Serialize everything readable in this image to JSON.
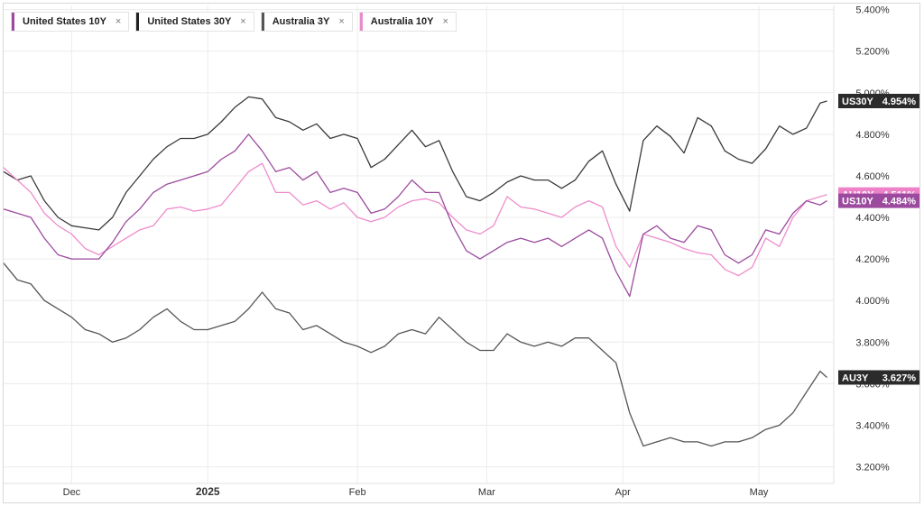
{
  "legend": [
    {
      "key": "US10Y",
      "label": "United States 10Y",
      "color": "#9b4a9e",
      "close": "×"
    },
    {
      "key": "US30Y",
      "label": "United States 30Y",
      "color": "#222222",
      "close": "×"
    },
    {
      "key": "AU3Y",
      "label": "Australia 3Y",
      "color": "#555555",
      "close": "×"
    },
    {
      "key": "AU10Y",
      "label": "Australia 10Y",
      "color": "#e98ccb",
      "close": "×"
    }
  ],
  "last_value_tags": [
    {
      "series": "US30Y",
      "symbol": "US30Y",
      "value": "4.954%",
      "color": "#2b2b2b"
    },
    {
      "series": "AU10Y",
      "symbol": "AU10Y",
      "value": "4.511%",
      "color": "#ee82c8"
    },
    {
      "series": "US10Y",
      "symbol": "US10Y",
      "value": "4.484%",
      "color": "#9b4a9e"
    },
    {
      "series": "AU3Y",
      "symbol": "AU3Y",
      "value": "3.627%",
      "color": "#2b2b2b"
    }
  ],
  "chart_data": {
    "type": "line",
    "title": "",
    "xlabel": "",
    "ylabel": "",
    "ylim": [
      3.12,
      5.42
    ],
    "xlim": [
      0,
      122
    ],
    "y_ticks": [
      "3.200%",
      "3.400%",
      "3.600%",
      "3.800%",
      "4.000%",
      "4.200%",
      "4.400%",
      "4.600%",
      "4.800%",
      "5.000%",
      "5.200%",
      "5.400%"
    ],
    "y_tick_values": [
      3.2,
      3.4,
      3.6,
      3.8,
      4.0,
      4.2,
      4.4,
      4.6,
      4.8,
      5.0,
      5.2,
      5.4
    ],
    "x_ticks": [
      {
        "label": "Dec",
        "x": 10,
        "bold": false
      },
      {
        "label": "2025",
        "x": 30,
        "bold": true
      },
      {
        "label": "Feb",
        "x": 52,
        "bold": false
      },
      {
        "label": "Mar",
        "x": 71,
        "bold": false
      },
      {
        "label": "Apr",
        "x": 91,
        "bold": false
      },
      {
        "label": "May",
        "x": 111,
        "bold": false
      }
    ],
    "grid": true,
    "series": [
      {
        "name": "US30Y",
        "color": "#3a3a3a",
        "points": [
          [
            0,
            4.62
          ],
          [
            2,
            4.58
          ],
          [
            4,
            4.6
          ],
          [
            6,
            4.48
          ],
          [
            8,
            4.4
          ],
          [
            10,
            4.36
          ],
          [
            12,
            4.35
          ],
          [
            14,
            4.34
          ],
          [
            16,
            4.4
          ],
          [
            18,
            4.52
          ],
          [
            20,
            4.6
          ],
          [
            22,
            4.68
          ],
          [
            24,
            4.74
          ],
          [
            26,
            4.78
          ],
          [
            28,
            4.78
          ],
          [
            30,
            4.8
          ],
          [
            32,
            4.86
          ],
          [
            34,
            4.93
          ],
          [
            36,
            4.98
          ],
          [
            38,
            4.97
          ],
          [
            40,
            4.88
          ],
          [
            42,
            4.86
          ],
          [
            44,
            4.82
          ],
          [
            46,
            4.85
          ],
          [
            48,
            4.78
          ],
          [
            50,
            4.8
          ],
          [
            52,
            4.78
          ],
          [
            54,
            4.64
          ],
          [
            56,
            4.68
          ],
          [
            58,
            4.75
          ],
          [
            60,
            4.82
          ],
          [
            62,
            4.74
          ],
          [
            64,
            4.77
          ],
          [
            66,
            4.62
          ],
          [
            68,
            4.5
          ],
          [
            70,
            4.48
          ],
          [
            72,
            4.52
          ],
          [
            74,
            4.57
          ],
          [
            76,
            4.6
          ],
          [
            78,
            4.58
          ],
          [
            80,
            4.58
          ],
          [
            82,
            4.54
          ],
          [
            84,
            4.58
          ],
          [
            86,
            4.67
          ],
          [
            88,
            4.72
          ],
          [
            90,
            4.56
          ],
          [
            92,
            4.43
          ],
          [
            94,
            4.77
          ],
          [
            96,
            4.84
          ],
          [
            98,
            4.79
          ],
          [
            100,
            4.71
          ],
          [
            102,
            4.88
          ],
          [
            104,
            4.84
          ],
          [
            106,
            4.72
          ],
          [
            108,
            4.68
          ],
          [
            110,
            4.66
          ],
          [
            112,
            4.73
          ],
          [
            114,
            4.84
          ],
          [
            116,
            4.8
          ],
          [
            118,
            4.83
          ],
          [
            120,
            4.95
          ],
          [
            121,
            4.96
          ]
        ]
      },
      {
        "name": "AU10Y",
        "color": "#ee8dcc",
        "points": [
          [
            0,
            4.64
          ],
          [
            2,
            4.58
          ],
          [
            4,
            4.52
          ],
          [
            6,
            4.42
          ],
          [
            8,
            4.36
          ],
          [
            10,
            4.32
          ],
          [
            12,
            4.25
          ],
          [
            14,
            4.22
          ],
          [
            16,
            4.26
          ],
          [
            18,
            4.3
          ],
          [
            20,
            4.34
          ],
          [
            22,
            4.36
          ],
          [
            24,
            4.44
          ],
          [
            26,
            4.45
          ],
          [
            28,
            4.43
          ],
          [
            30,
            4.44
          ],
          [
            32,
            4.46
          ],
          [
            34,
            4.54
          ],
          [
            36,
            4.62
          ],
          [
            38,
            4.66
          ],
          [
            40,
            4.52
          ],
          [
            42,
            4.52
          ],
          [
            44,
            4.46
          ],
          [
            46,
            4.48
          ],
          [
            48,
            4.44
          ],
          [
            50,
            4.47
          ],
          [
            52,
            4.4
          ],
          [
            54,
            4.38
          ],
          [
            56,
            4.4
          ],
          [
            58,
            4.45
          ],
          [
            60,
            4.48
          ],
          [
            62,
            4.49
          ],
          [
            64,
            4.47
          ],
          [
            66,
            4.4
          ],
          [
            68,
            4.34
          ],
          [
            70,
            4.32
          ],
          [
            72,
            4.36
          ],
          [
            74,
            4.5
          ],
          [
            76,
            4.45
          ],
          [
            78,
            4.44
          ],
          [
            80,
            4.42
          ],
          [
            82,
            4.4
          ],
          [
            84,
            4.45
          ],
          [
            86,
            4.48
          ],
          [
            88,
            4.45
          ],
          [
            90,
            4.26
          ],
          [
            92,
            4.16
          ],
          [
            94,
            4.32
          ],
          [
            96,
            4.3
          ],
          [
            98,
            4.28
          ],
          [
            100,
            4.25
          ],
          [
            102,
            4.23
          ],
          [
            104,
            4.22
          ],
          [
            106,
            4.15
          ],
          [
            108,
            4.12
          ],
          [
            110,
            4.16
          ],
          [
            112,
            4.3
          ],
          [
            114,
            4.26
          ],
          [
            116,
            4.4
          ],
          [
            118,
            4.48
          ],
          [
            120,
            4.5
          ],
          [
            121,
            4.51
          ]
        ]
      },
      {
        "name": "US10Y",
        "color": "#9b4a9e",
        "points": [
          [
            0,
            4.44
          ],
          [
            2,
            4.42
          ],
          [
            4,
            4.4
          ],
          [
            6,
            4.3
          ],
          [
            8,
            4.22
          ],
          [
            10,
            4.2
          ],
          [
            12,
            4.2
          ],
          [
            14,
            4.2
          ],
          [
            16,
            4.28
          ],
          [
            18,
            4.38
          ],
          [
            20,
            4.44
          ],
          [
            22,
            4.52
          ],
          [
            24,
            4.56
          ],
          [
            26,
            4.58
          ],
          [
            28,
            4.6
          ],
          [
            30,
            4.62
          ],
          [
            32,
            4.68
          ],
          [
            34,
            4.72
          ],
          [
            36,
            4.8
          ],
          [
            38,
            4.72
          ],
          [
            40,
            4.62
          ],
          [
            42,
            4.64
          ],
          [
            44,
            4.58
          ],
          [
            46,
            4.62
          ],
          [
            48,
            4.52
          ],
          [
            50,
            4.54
          ],
          [
            52,
            4.52
          ],
          [
            54,
            4.42
          ],
          [
            56,
            4.44
          ],
          [
            58,
            4.5
          ],
          [
            60,
            4.58
          ],
          [
            62,
            4.52
          ],
          [
            64,
            4.52
          ],
          [
            66,
            4.36
          ],
          [
            68,
            4.24
          ],
          [
            70,
            4.2
          ],
          [
            72,
            4.24
          ],
          [
            74,
            4.28
          ],
          [
            76,
            4.3
          ],
          [
            78,
            4.28
          ],
          [
            80,
            4.3
          ],
          [
            82,
            4.26
          ],
          [
            84,
            4.3
          ],
          [
            86,
            4.34
          ],
          [
            88,
            4.3
          ],
          [
            90,
            4.14
          ],
          [
            92,
            4.02
          ],
          [
            94,
            4.32
          ],
          [
            96,
            4.36
          ],
          [
            98,
            4.3
          ],
          [
            100,
            4.28
          ],
          [
            102,
            4.36
          ],
          [
            104,
            4.34
          ],
          [
            106,
            4.22
          ],
          [
            108,
            4.18
          ],
          [
            110,
            4.22
          ],
          [
            112,
            4.34
          ],
          [
            114,
            4.32
          ],
          [
            116,
            4.42
          ],
          [
            118,
            4.48
          ],
          [
            120,
            4.46
          ],
          [
            121,
            4.48
          ]
        ]
      },
      {
        "name": "AU3Y",
        "color": "#555555",
        "points": [
          [
            0,
            4.18
          ],
          [
            2,
            4.1
          ],
          [
            4,
            4.08
          ],
          [
            6,
            4.0
          ],
          [
            8,
            3.96
          ],
          [
            10,
            3.92
          ],
          [
            12,
            3.86
          ],
          [
            14,
            3.84
          ],
          [
            16,
            3.8
          ],
          [
            18,
            3.82
          ],
          [
            20,
            3.86
          ],
          [
            22,
            3.92
          ],
          [
            24,
            3.96
          ],
          [
            26,
            3.9
          ],
          [
            28,
            3.86
          ],
          [
            30,
            3.86
          ],
          [
            32,
            3.88
          ],
          [
            34,
            3.9
          ],
          [
            36,
            3.96
          ],
          [
            38,
            4.04
          ],
          [
            40,
            3.96
          ],
          [
            42,
            3.94
          ],
          [
            44,
            3.86
          ],
          [
            46,
            3.88
          ],
          [
            48,
            3.84
          ],
          [
            50,
            3.8
          ],
          [
            52,
            3.78
          ],
          [
            54,
            3.75
          ],
          [
            56,
            3.78
          ],
          [
            58,
            3.84
          ],
          [
            60,
            3.86
          ],
          [
            62,
            3.84
          ],
          [
            64,
            3.92
          ],
          [
            66,
            3.86
          ],
          [
            68,
            3.8
          ],
          [
            70,
            3.76
          ],
          [
            72,
            3.76
          ],
          [
            74,
            3.84
          ],
          [
            76,
            3.8
          ],
          [
            78,
            3.78
          ],
          [
            80,
            3.8
          ],
          [
            82,
            3.78
          ],
          [
            84,
            3.82
          ],
          [
            86,
            3.82
          ],
          [
            88,
            3.76
          ],
          [
            90,
            3.7
          ],
          [
            92,
            3.46
          ],
          [
            94,
            3.3
          ],
          [
            96,
            3.32
          ],
          [
            98,
            3.34
          ],
          [
            100,
            3.32
          ],
          [
            102,
            3.32
          ],
          [
            104,
            3.3
          ],
          [
            106,
            3.32
          ],
          [
            108,
            3.32
          ],
          [
            110,
            3.34
          ],
          [
            112,
            3.38
          ],
          [
            114,
            3.4
          ],
          [
            116,
            3.46
          ],
          [
            118,
            3.56
          ],
          [
            120,
            3.66
          ],
          [
            121,
            3.63
          ]
        ]
      }
    ]
  }
}
